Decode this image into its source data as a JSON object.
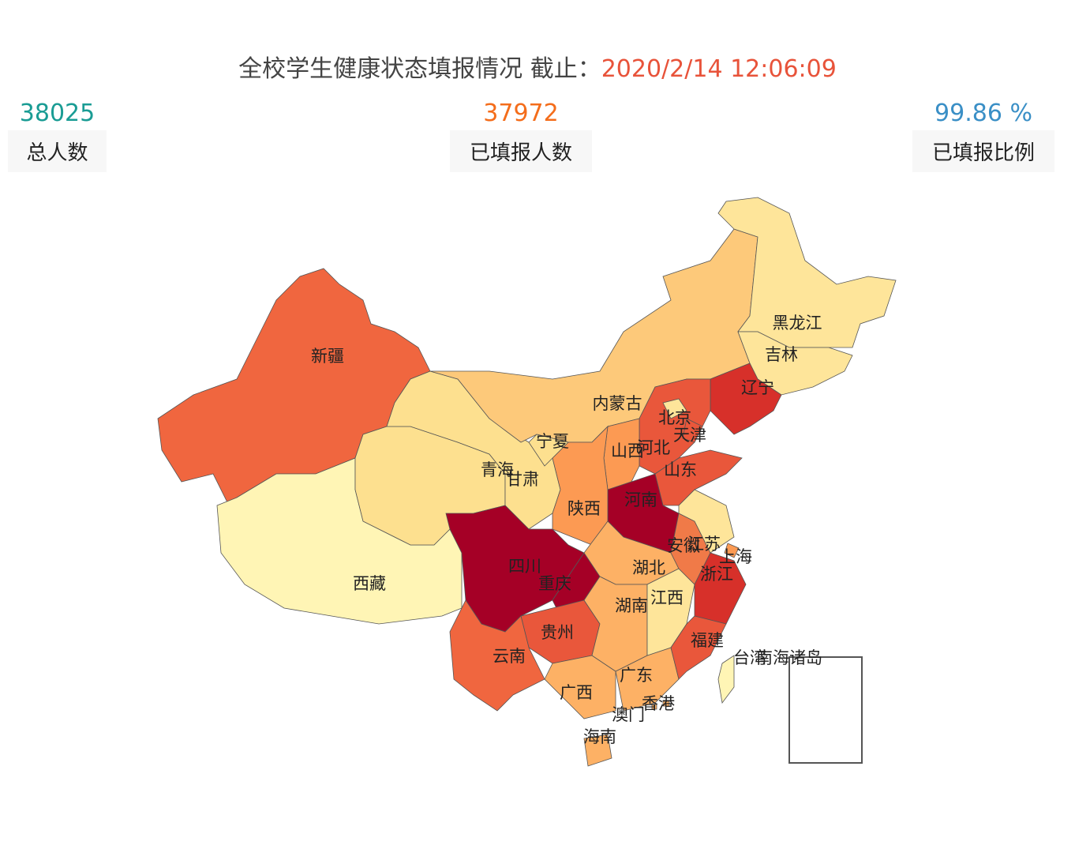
{
  "header": {
    "title": "全校学生健康状态填报情况 截止：",
    "timestamp": "2020/2/14 12:06:09"
  },
  "stats": [
    {
      "value": "38025",
      "label": "总人数",
      "color": "#1a9c94"
    },
    {
      "value": "37972",
      "label": "已填报人数",
      "color": "#f46d1b"
    },
    {
      "value": "99.86 %",
      "label": "已填报比例",
      "color": "#3a8fc6"
    }
  ],
  "map": {
    "provinces": [
      {
        "name": "新疆",
        "color": "#f0663f"
      },
      {
        "name": "西藏",
        "color": "#fff5b5"
      },
      {
        "name": "青海",
        "color": "#fde08f"
      },
      {
        "name": "甘肃",
        "color": "#fde08f"
      },
      {
        "name": "内蒙古",
        "color": "#fdc97a"
      },
      {
        "name": "黑龙江",
        "color": "#fee59a"
      },
      {
        "name": "吉林",
        "color": "#fee59a"
      },
      {
        "name": "辽宁",
        "color": "#d7302a"
      },
      {
        "name": "河北",
        "color": "#e9573b"
      },
      {
        "name": "北京",
        "color": "#fee59a"
      },
      {
        "name": "天津",
        "color": "#e9573b"
      },
      {
        "name": "山西",
        "color": "#fc9a53"
      },
      {
        "name": "山东",
        "color": "#e9573b"
      },
      {
        "name": "河南",
        "color": "#a50026"
      },
      {
        "name": "陕西",
        "color": "#fc9a53"
      },
      {
        "name": "宁夏",
        "color": "#fde08f"
      },
      {
        "name": "四川",
        "color": "#a50026"
      },
      {
        "name": "重庆",
        "color": "#a50026"
      },
      {
        "name": "贵州",
        "color": "#e9573b"
      },
      {
        "name": "云南",
        "color": "#f0663f"
      },
      {
        "name": "广西",
        "color": "#fdb165"
      },
      {
        "name": "广东",
        "color": "#fdb165"
      },
      {
        "name": "海南",
        "color": "#fdb165"
      },
      {
        "name": "湖北",
        "color": "#fdb165"
      },
      {
        "name": "湖南",
        "color": "#fdb165"
      },
      {
        "name": "江西",
        "color": "#fee59a"
      },
      {
        "name": "安徽",
        "color": "#f07a48"
      },
      {
        "name": "江苏",
        "color": "#fee59a"
      },
      {
        "name": "上海",
        "color": "#fc9a53"
      },
      {
        "name": "浙江",
        "color": "#d7302a"
      },
      {
        "name": "福建",
        "color": "#e9573b"
      },
      {
        "name": "台湾",
        "color": "#fff5b5"
      },
      {
        "name": "香港",
        "color": "#fdb165"
      },
      {
        "name": "澳门",
        "color": "#fdb165"
      },
      {
        "name": "南海诸岛",
        "color": "#ffffff"
      }
    ]
  }
}
